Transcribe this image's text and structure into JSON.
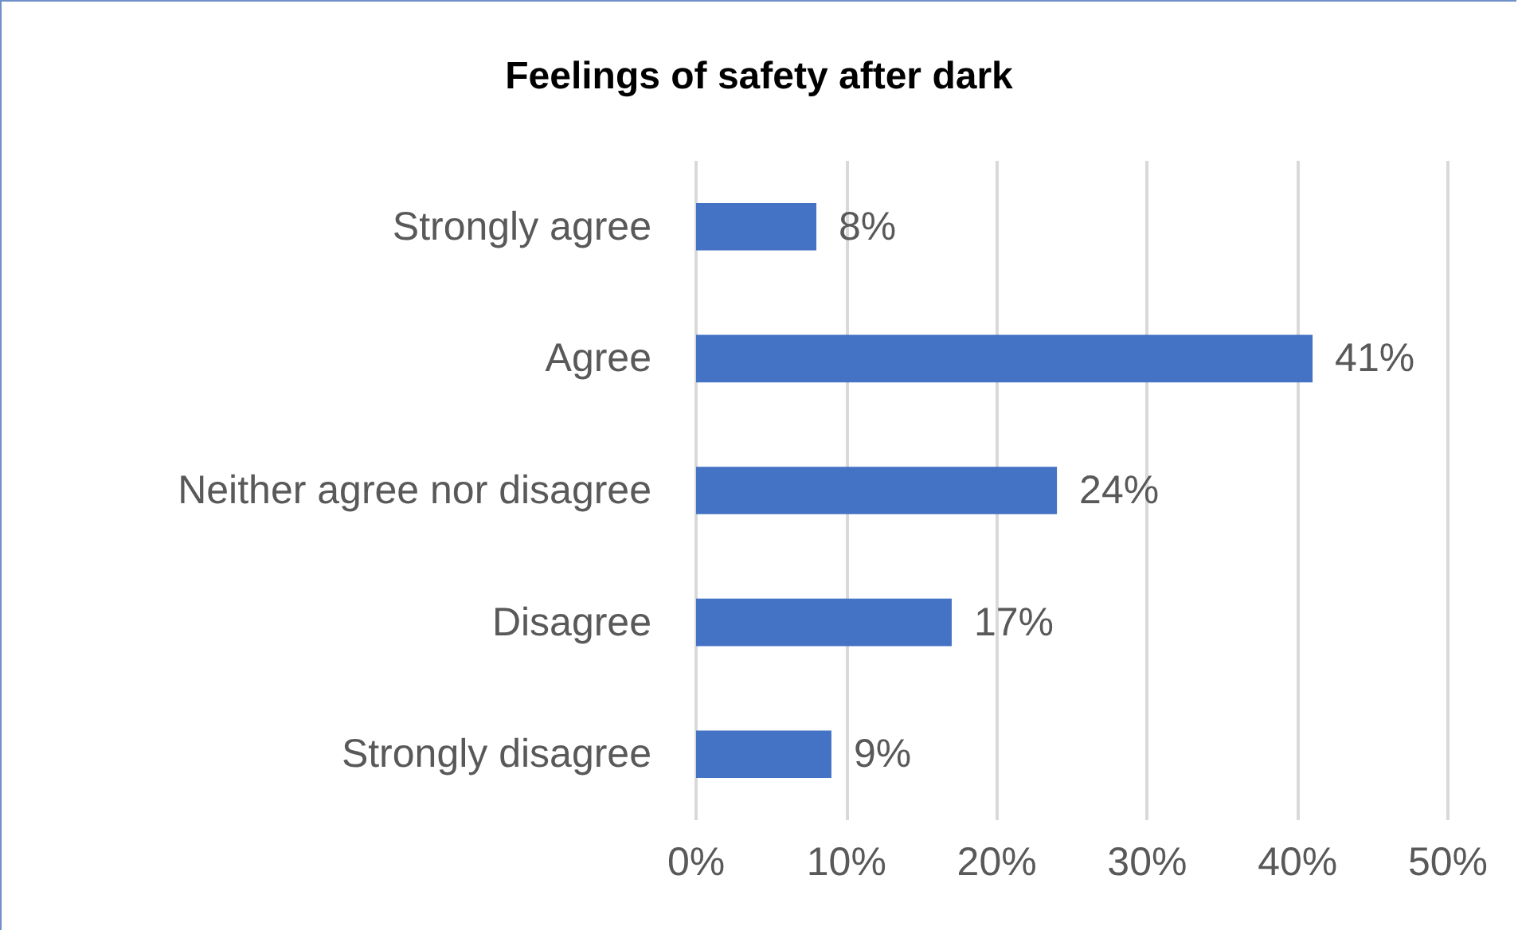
{
  "chart_data": {
    "type": "bar",
    "orientation": "horizontal",
    "title": "Feelings of safety after dark",
    "categories": [
      "Strongly agree",
      "Agree",
      "Neither agree nor disagree",
      "Disagree",
      "Strongly disagree"
    ],
    "values": [
      8,
      41,
      24,
      17,
      9
    ],
    "value_labels": [
      "8%",
      "41%",
      "24%",
      "17%",
      "9%"
    ],
    "color": "#4472c4",
    "xlim": [
      0,
      50
    ],
    "xticks": [
      {
        "value": 0,
        "label": "0%"
      },
      {
        "value": 10,
        "label": "10%"
      },
      {
        "value": 20,
        "label": "20%"
      },
      {
        "value": 30,
        "label": "30%"
      },
      {
        "value": 40,
        "label": "40%"
      },
      {
        "value": 50,
        "label": "50%"
      }
    ],
    "grid": "x"
  }
}
